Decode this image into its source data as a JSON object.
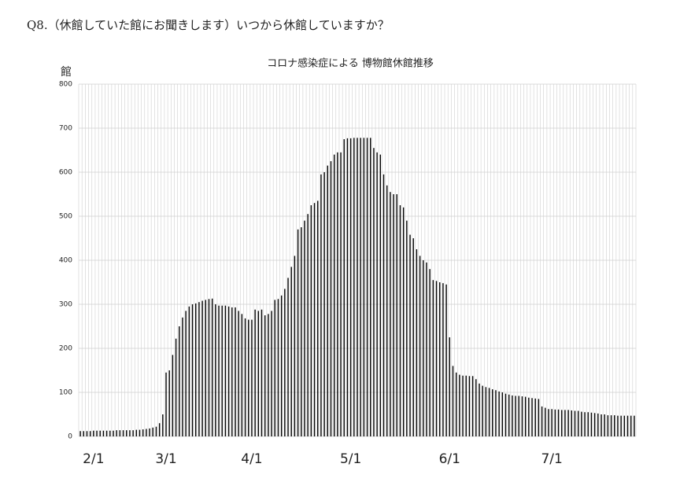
{
  "header": {
    "question": "Q8.（休館していた館にお聞きします）いつから休館していますか？"
  },
  "chart_data": {
    "type": "bar",
    "title": "コロナ感染症による 博物館休館推移",
    "y_label": "館",
    "categories": [
      null,
      null,
      null,
      null,
      "2/1",
      null,
      null,
      null,
      null,
      null,
      null,
      null,
      null,
      null,
      null,
      null,
      null,
      null,
      null,
      null,
      null,
      null,
      null,
      null,
      null,
      null,
      "3/1",
      null,
      null,
      null,
      null,
      null,
      null,
      null,
      null,
      null,
      null,
      null,
      null,
      null,
      null,
      null,
      null,
      null,
      null,
      null,
      null,
      null,
      null,
      null,
      null,
      null,
      "4/1",
      null,
      null,
      null,
      null,
      null,
      null,
      null,
      null,
      null,
      null,
      null,
      null,
      null,
      null,
      null,
      null,
      null,
      null,
      null,
      null,
      null,
      null,
      null,
      null,
      null,
      null,
      null,
      null,
      null,
      "5/1",
      null,
      null,
      null,
      null,
      null,
      null,
      null,
      null,
      null,
      null,
      null,
      null,
      null,
      null,
      null,
      null,
      null,
      null,
      null,
      null,
      null,
      null,
      null,
      null,
      null,
      null,
      null,
      null,
      null,
      "6/1",
      null,
      null,
      null,
      null,
      null,
      null,
      null,
      null,
      null,
      null,
      null,
      null,
      null,
      null,
      null,
      null,
      null,
      null,
      null,
      null,
      null,
      null,
      null,
      null,
      null,
      null,
      null,
      null,
      null,
      null,
      "7/1",
      null,
      null,
      null,
      null,
      null,
      null,
      null,
      null,
      null,
      null,
      null,
      null,
      null,
      null,
      null,
      null,
      null,
      null,
      null,
      null,
      null,
      null,
      null,
      null,
      null
    ],
    "values": [
      12,
      12,
      12,
      12,
      13,
      13,
      13,
      13,
      13,
      13,
      13,
      14,
      14,
      14,
      14,
      14,
      14,
      15,
      15,
      16,
      17,
      18,
      20,
      22,
      30,
      50,
      145,
      150,
      185,
      222,
      250,
      270,
      285,
      295,
      300,
      302,
      305,
      308,
      310,
      312,
      313,
      300,
      297,
      297,
      297,
      295,
      293,
      293,
      285,
      278,
      268,
      265,
      265,
      288,
      285,
      288,
      275,
      278,
      285,
      310,
      312,
      320,
      335,
      360,
      385,
      410,
      470,
      475,
      490,
      505,
      525,
      530,
      535,
      595,
      600,
      615,
      625,
      640,
      645,
      645,
      675,
      677,
      677,
      678,
      678,
      678,
      678,
      678,
      678,
      655,
      645,
      640,
      595,
      570,
      555,
      550,
      550,
      525,
      520,
      490,
      458,
      450,
      425,
      410,
      400,
      395,
      380,
      355,
      353,
      350,
      348,
      345,
      225,
      160,
      145,
      140,
      138,
      138,
      137,
      137,
      130,
      120,
      115,
      112,
      110,
      107,
      105,
      102,
      100,
      97,
      95,
      93,
      92,
      92,
      91,
      90,
      88,
      87,
      86,
      85,
      68,
      65,
      62,
      62,
      61,
      61,
      60,
      60,
      60,
      59,
      58,
      58,
      56,
      55,
      55,
      54,
      53,
      52,
      50,
      50,
      48,
      48,
      48,
      47,
      47,
      47,
      47,
      47,
      47
    ],
    "color": "#000000",
    "ylim": [
      0,
      800
    ],
    "yticks": [
      0,
      100,
      200,
      300,
      400,
      500,
      600,
      700,
      800
    ],
    "grid": true
  }
}
